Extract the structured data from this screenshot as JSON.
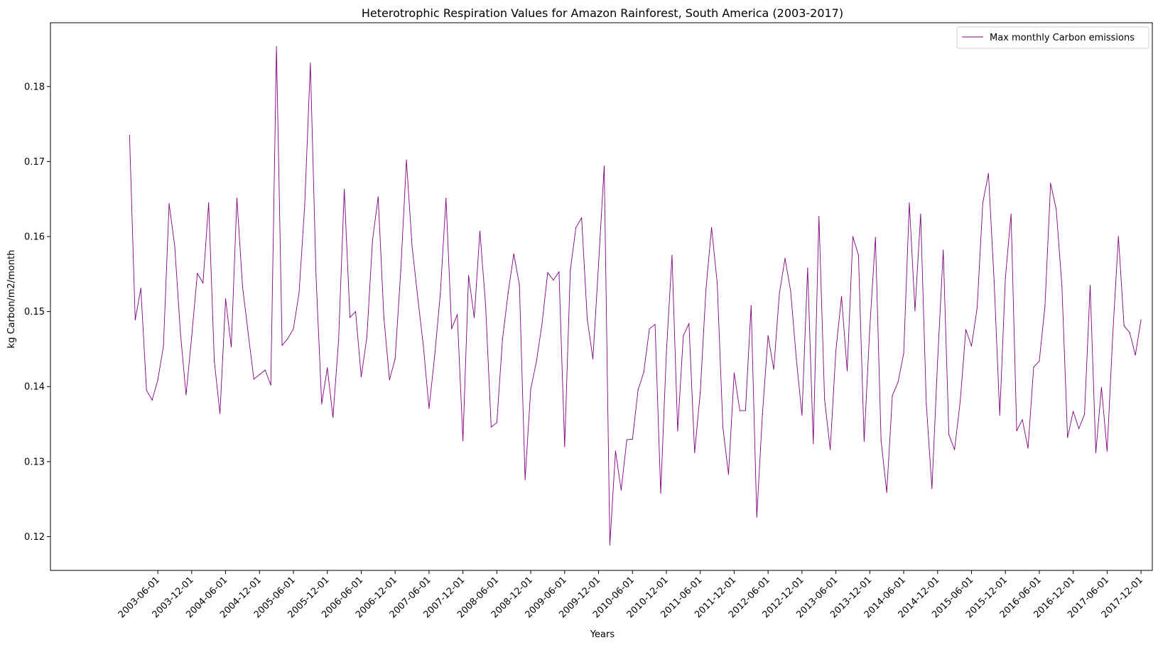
{
  "chart_data": {
    "type": "line",
    "title": "Heterotrophic Respiration Values for Amazon Rainforest, South America (2003-2017)",
    "xlabel": "Years",
    "ylabel": "kg Carbon/m2/month",
    "x_start": "2003-01",
    "x_end": "2017-12",
    "ylim": [
      0.1155,
      0.1885
    ],
    "yticks": [
      0.12,
      0.13,
      0.14,
      0.15,
      0.16,
      0.17,
      0.18
    ],
    "xticks": [
      "2003-06-01",
      "2003-12-01",
      "2004-06-01",
      "2004-12-01",
      "2005-06-01",
      "2005-12-01",
      "2006-06-01",
      "2006-12-01",
      "2007-06-01",
      "2007-12-01",
      "2008-06-01",
      "2008-12-01",
      "2009-06-01",
      "2009-12-01",
      "2010-06-01",
      "2010-12-01",
      "2011-06-01",
      "2011-12-01",
      "2012-06-01",
      "2012-12-01",
      "2013-06-01",
      "2013-12-01",
      "2014-06-01",
      "2014-12-01",
      "2015-06-01",
      "2015-12-01",
      "2016-06-01",
      "2016-12-01",
      "2017-06-01",
      "2017-12-01"
    ],
    "grid": false,
    "legend_position": "top-right",
    "series": [
      {
        "name": "Max monthly Carbon emissions",
        "color": "#800080",
        "values": [
          0.1735,
          0.1489,
          0.1531,
          0.1395,
          0.1382,
          0.1409,
          0.1454,
          0.1644,
          0.1587,
          0.1472,
          0.1389,
          0.1467,
          0.1551,
          0.1538,
          0.1645,
          0.1434,
          0.1364,
          0.1517,
          0.1453,
          0.1651,
          0.1533,
          0.1471,
          0.141,
          0.1416,
          0.1422,
          0.1402,
          0.1853,
          0.1455,
          0.1464,
          0.1477,
          0.1525,
          0.1642,
          0.1831,
          0.1548,
          0.1377,
          0.1425,
          0.1359,
          0.1463,
          0.1663,
          0.1492,
          0.15,
          0.1413,
          0.1466,
          0.1595,
          0.1653,
          0.1493,
          0.1409,
          0.1437,
          0.1555,
          0.1702,
          0.1587,
          0.1519,
          0.1454,
          0.1371,
          0.1441,
          0.1524,
          0.1651,
          0.1477,
          0.1496,
          0.1328,
          0.1548,
          0.1492,
          0.1607,
          0.151,
          0.1346,
          0.1352,
          0.1463,
          0.1525,
          0.1577,
          0.1535,
          0.1276,
          0.1397,
          0.1433,
          0.1484,
          0.1552,
          0.1542,
          0.1553,
          0.132,
          0.1555,
          0.1612,
          0.1625,
          0.149,
          0.1437,
          0.1563,
          0.1694,
          0.1189,
          0.1314,
          0.1262,
          0.1329,
          0.133,
          0.1396,
          0.1419,
          0.1477,
          0.1483,
          0.1258,
          0.1445,
          0.1575,
          0.1341,
          0.1468,
          0.1484,
          0.1312,
          0.1392,
          0.1529,
          0.1612,
          0.1538,
          0.1346,
          0.1283,
          0.1418,
          0.1368,
          0.1368,
          0.1508,
          0.1226,
          0.1363,
          0.1468,
          0.1423,
          0.1524,
          0.1571,
          0.1527,
          0.1437,
          0.1362,
          0.1558,
          0.1324,
          0.1627,
          0.1383,
          0.1316,
          0.1448,
          0.152,
          0.1421,
          0.16,
          0.1575,
          0.1327,
          0.1478,
          0.1599,
          0.1328,
          0.1259,
          0.1388,
          0.1406,
          0.1444,
          0.1645,
          0.1501,
          0.163,
          0.1377,
          0.1264,
          0.1434,
          0.1582,
          0.1336,
          0.1316,
          0.138,
          0.1476,
          0.1454,
          0.1505,
          0.1645,
          0.1684,
          0.1541,
          0.1362,
          0.1545,
          0.163,
          0.1341,
          0.1356,
          0.1318,
          0.1426,
          0.1434,
          0.1507,
          0.1671,
          0.1636,
          0.1534,
          0.1332,
          0.1367,
          0.1344,
          0.1363,
          0.1535,
          0.1312,
          0.1399,
          0.1314,
          0.1469,
          0.16,
          0.1481,
          0.1472,
          0.1442,
          0.1489
        ]
      }
    ]
  }
}
